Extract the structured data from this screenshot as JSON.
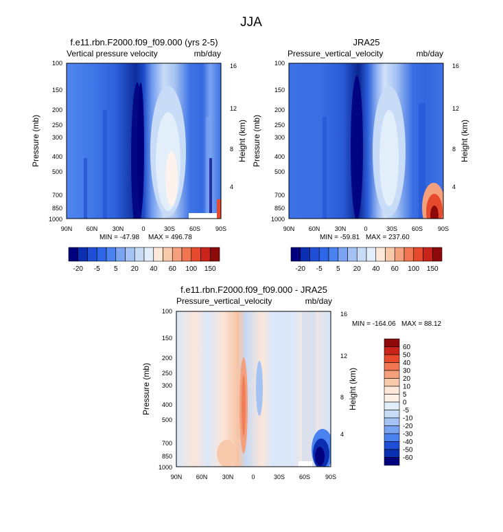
{
  "figure": {
    "title": "JJA"
  },
  "shared": {
    "left_axis_label": "Pressure (mb)",
    "right_axis_label": "Height (km)",
    "pressure_ticks": [
      "100",
      "150",
      "200",
      "250",
      "300",
      "400",
      "500",
      "700",
      "850",
      "1000"
    ],
    "height_ticks": [
      "16",
      "12",
      "8",
      "4"
    ],
    "lat_ticks": [
      "90N",
      "60N",
      "30N",
      "0",
      "30S",
      "60S",
      "90S"
    ]
  },
  "chart_data": [
    {
      "type": "heatmap",
      "title": "f.e11.rbn.F2000.f09_f09.000 (yrs 2-5)",
      "variable": "Vertical pressure velocity",
      "units": "mb/day",
      "min_label": "MIN = -47.98",
      "max_label": "MAX = 496.78",
      "min": -47.98,
      "max": 496.78,
      "x_axis": "latitude 90N to 90S",
      "y_axis": "pressure 100 to 1000 mb (log), height 0 to 16 km",
      "colorbar_labels": [
        "-20",
        "-5",
        "5",
        "20",
        "40",
        "60",
        "100",
        "150"
      ],
      "colorbar_colors": [
        "#00007f",
        "#0a2fb0",
        "#1f4fd6",
        "#2f66e8",
        "#4a83f0",
        "#7aa4f2",
        "#a4c2f4",
        "#c9dcf7",
        "#e3eefb",
        "#fde7d9",
        "#f8c9aa",
        "#f4a07c",
        "#ef7650",
        "#e6492b",
        "#c9231a",
        "#8e0a0a"
      ]
    },
    {
      "type": "heatmap",
      "title": "JRA25",
      "variable": "Pressure_vertical_velocity",
      "units": "mb/day",
      "min_label": "MIN = -59.81",
      "max_label": "MAX = 237.60",
      "min": -59.81,
      "max": 237.6,
      "x_axis": "latitude 90N to 90S",
      "y_axis": "pressure 100 to 1000 mb (log), height 0 to 16 km",
      "colorbar_labels": [
        "-20",
        "-5",
        "5",
        "20",
        "40",
        "60",
        "100",
        "150"
      ],
      "colorbar_colors": [
        "#00007f",
        "#0a2fb0",
        "#1f4fd6",
        "#2f66e8",
        "#4a83f0",
        "#7aa4f2",
        "#a4c2f4",
        "#c9dcf7",
        "#e3eefb",
        "#fde7d9",
        "#f8c9aa",
        "#f4a07c",
        "#ef7650",
        "#e6492b",
        "#c9231a",
        "#8e0a0a"
      ]
    },
    {
      "type": "heatmap",
      "title": "f.e11.rbn.F2000.f09_f09.000 - JRA25",
      "variable": "Pressure_vertical_velocity",
      "units": "mb/day",
      "min_label": "MIN = -164.06",
      "max_label": "MAX = 88.12",
      "min": -164.06,
      "max": 88.12,
      "x_axis": "latitude 90N to 90S",
      "y_axis": "pressure 100 to 1000 mb (log), height 0 to 16 km",
      "colorbar_labels": [
        "60",
        "50",
        "40",
        "30",
        "20",
        "10",
        "5",
        "0",
        "-5",
        "-10",
        "-20",
        "-30",
        "-40",
        "-50",
        "-60"
      ],
      "colorbar_colors": [
        "#8e0a0a",
        "#c9231a",
        "#e6492b",
        "#ef7650",
        "#f4a07c",
        "#f8c9aa",
        "#fde7d9",
        "#fdf0e6",
        "#e3eefb",
        "#c9dcf7",
        "#a4c2f4",
        "#7aa4f2",
        "#4a83f0",
        "#1f4fd6",
        "#0a2fb0",
        "#00007f"
      ]
    }
  ]
}
